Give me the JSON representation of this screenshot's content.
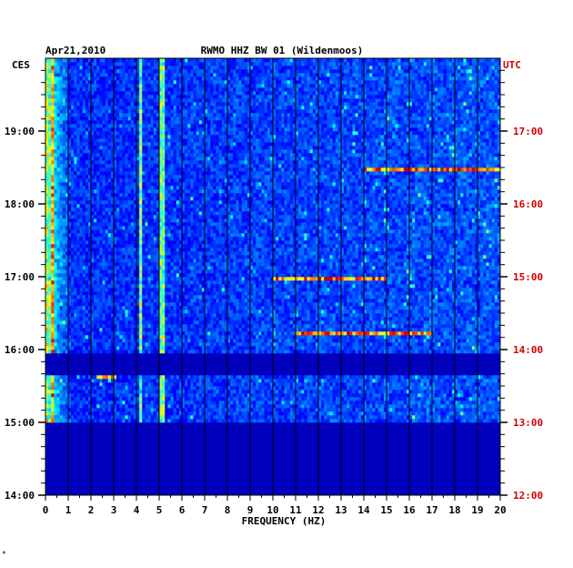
{
  "chart_data": {
    "type": "heatmap",
    "date": "Apr21,2010",
    "title": "RWMO HHZ BW 01 (Wildenmoos)",
    "left_tz": "CES",
    "right_tz": "UTC",
    "xlabel": "FREQUENCY (HZ)",
    "x_ticks": [
      "0",
      "1",
      "2",
      "3",
      "4",
      "5",
      "6",
      "7",
      "8",
      "9",
      "10",
      "11",
      "12",
      "13",
      "14",
      "15",
      "16",
      "17",
      "18",
      "19",
      "20"
    ],
    "xlim": [
      0,
      20
    ],
    "y_range_hours": [
      14,
      20
    ],
    "left_ticks": [
      "14:00",
      "15:00",
      "16:00",
      "17:00",
      "18:00",
      "19:00"
    ],
    "right_ticks": [
      "12:00",
      "13:00",
      "14:00",
      "15:00",
      "16:00",
      "17:00"
    ],
    "data_gaps": [
      {
        "start": "14:00",
        "end": "15:00"
      },
      {
        "start": "15:40",
        "end": "15:57"
      }
    ],
    "persistent_lines_hz": [
      0.3,
      4.2,
      5.1
    ],
    "strong_events": [
      {
        "time": "18:28",
        "freq_range_hz": [
          14,
          20
        ]
      },
      {
        "time": "16:59",
        "freq_range_hz": [
          10,
          15
        ]
      },
      {
        "time": "16:13",
        "freq_range_hz": [
          11,
          17
        ]
      },
      {
        "time": "15:38",
        "freq_range_hz": [
          2.3,
          3.1
        ]
      }
    ]
  },
  "footer_mark": "*"
}
